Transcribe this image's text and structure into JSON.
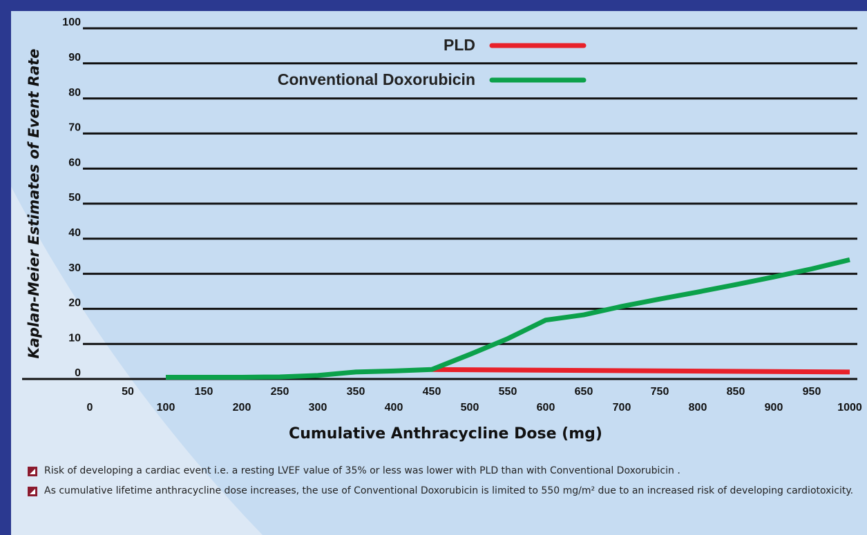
{
  "chart_data": {
    "type": "line",
    "y_label": "Kaplan-Meier Estimates of Event Rate",
    "x_label": "Cumulative Anthracycline Dose (mg)",
    "xlim": [
      0,
      1010
    ],
    "xticks": [
      0,
      50,
      100,
      150,
      200,
      250,
      300,
      350,
      400,
      450,
      500,
      550,
      600,
      650,
      700,
      750,
      800,
      850,
      900,
      950,
      1000
    ],
    "ylim": [
      0,
      100
    ],
    "yticks": [
      0,
      10,
      20,
      30,
      40,
      50,
      60,
      70,
      80,
      90,
      100
    ],
    "grid": true,
    "legend": "top",
    "series": [
      {
        "name": "PLD",
        "color": "#e8212a",
        "x": [
          450,
          1000
        ],
        "values": [
          2.7,
          2.0
        ]
      },
      {
        "name": "Conventional Doxorubicin",
        "color": "#0ca14b",
        "x": [
          100,
          200,
          250,
          300,
          350,
          400,
          450,
          500,
          550,
          600,
          650,
          700,
          750,
          800,
          850,
          900,
          950,
          1000
        ],
        "values": [
          0.5,
          0.5,
          0.6,
          1,
          2,
          2.3,
          2.7,
          7,
          11.5,
          16.8,
          18.3,
          20.7,
          22.8,
          24.8,
          26.9,
          29.1,
          31.4,
          34
        ]
      }
    ]
  },
  "bullets": [
    "Risk of developing a cardiac event i.e. a resting LVEF value of 35% or less was lower with PLD than with Conventional Doxorubicin .",
    "As cumulative lifetime anthracycline dose increases,  the use of Conventional Doxorubicin is limited to 550 mg/m² due to an increased risk of developing cardiotoxicity."
  ]
}
